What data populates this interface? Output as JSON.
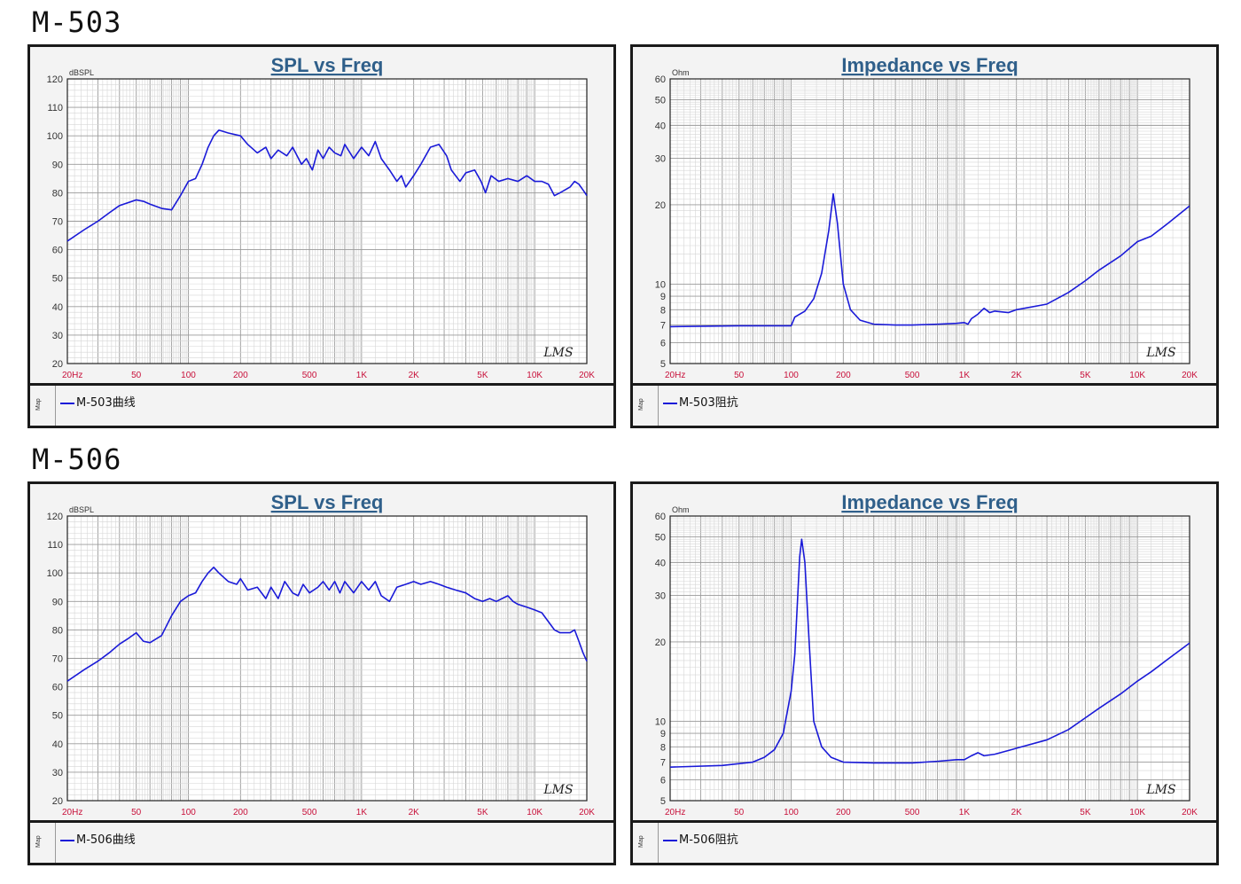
{
  "sections": [
    {
      "model": "M-503"
    },
    {
      "model": "M-506"
    }
  ],
  "x_tick_labels": [
    "20Hz",
    "50",
    "100",
    "200",
    "500",
    "1K",
    "2K",
    "5K",
    "10K",
    "20K"
  ],
  "colors": {
    "curve": "#1a1ad8",
    "tick_x": "#c8103a",
    "title": "#2f5f8a",
    "grid": "#bdbdbd"
  },
  "watermark": "LMS",
  "legend_side_label": "Map",
  "chart_data": [
    {
      "type": "line",
      "title": "SPL vs Freq",
      "ylabel": "dBSPL",
      "xscale": "log",
      "xlim": [
        20,
        20000
      ],
      "ylim": [
        20,
        120
      ],
      "yticks": [
        20,
        30,
        40,
        50,
        60,
        70,
        80,
        90,
        100,
        110,
        120
      ],
      "legend_placement": "bottom",
      "grid": true,
      "series": [
        {
          "name": "M-503曲线",
          "points": [
            [
              20,
              63
            ],
            [
              25,
              67
            ],
            [
              30,
              70
            ],
            [
              35,
              73
            ],
            [
              40,
              75.5
            ],
            [
              50,
              77.5
            ],
            [
              55,
              77
            ],
            [
              60,
              76
            ],
            [
              70,
              74.5
            ],
            [
              80,
              74
            ],
            [
              90,
              79
            ],
            [
              100,
              84
            ],
            [
              110,
              85
            ],
            [
              120,
              90
            ],
            [
              130,
              96
            ],
            [
              140,
              100
            ],
            [
              150,
              102
            ],
            [
              170,
              101
            ],
            [
              200,
              100
            ],
            [
              220,
              97
            ],
            [
              250,
              94
            ],
            [
              280,
              96
            ],
            [
              300,
              92
            ],
            [
              330,
              95
            ],
            [
              370,
              93
            ],
            [
              400,
              96
            ],
            [
              450,
              90
            ],
            [
              480,
              92
            ],
            [
              520,
              88
            ],
            [
              560,
              95
            ],
            [
              600,
              92
            ],
            [
              650,
              96
            ],
            [
              700,
              94
            ],
            [
              760,
              93
            ],
            [
              800,
              97
            ],
            [
              900,
              92
            ],
            [
              1000,
              96
            ],
            [
              1100,
              93
            ],
            [
              1200,
              98
            ],
            [
              1300,
              92
            ],
            [
              1450,
              88
            ],
            [
              1600,
              84
            ],
            [
              1700,
              86
            ],
            [
              1800,
              82
            ],
            [
              2000,
              86
            ],
            [
              2200,
              90
            ],
            [
              2500,
              96
            ],
            [
              2800,
              97
            ],
            [
              3100,
              93
            ],
            [
              3300,
              88
            ],
            [
              3700,
              84
            ],
            [
              4000,
              87
            ],
            [
              4500,
              88
            ],
            [
              4900,
              84
            ],
            [
              5200,
              80
            ],
            [
              5600,
              86
            ],
            [
              6200,
              84
            ],
            [
              7000,
              85
            ],
            [
              8000,
              84
            ],
            [
              9000,
              86
            ],
            [
              10000,
              84
            ],
            [
              11000,
              84
            ],
            [
              12000,
              83
            ],
            [
              13000,
              79
            ],
            [
              14000,
              80
            ],
            [
              16000,
              82
            ],
            [
              17000,
              84
            ],
            [
              18000,
              83
            ],
            [
              19000,
              81
            ],
            [
              20000,
              79
            ]
          ]
        }
      ]
    },
    {
      "type": "line",
      "title": "Impedance vs Freq",
      "ylabel": "Ohm",
      "xscale": "log",
      "yscale": "log",
      "xlim": [
        20,
        20000
      ],
      "ylim": [
        5,
        60
      ],
      "yticks": [
        5,
        6,
        7,
        8,
        9,
        10,
        20,
        30,
        40,
        50,
        60
      ],
      "legend_placement": "bottom",
      "grid": true,
      "series": [
        {
          "name": "M-503阻抗",
          "points": [
            [
              20,
              6.9
            ],
            [
              50,
              6.95
            ],
            [
              80,
              6.95
            ],
            [
              100,
              6.95
            ],
            [
              105,
              7.5
            ],
            [
              120,
              7.9
            ],
            [
              135,
              8.8
            ],
            [
              150,
              11
            ],
            [
              165,
              16
            ],
            [
              175,
              22
            ],
            [
              185,
              17
            ],
            [
              200,
              10
            ],
            [
              220,
              8
            ],
            [
              250,
              7.3
            ],
            [
              300,
              7.05
            ],
            [
              400,
              7.0
            ],
            [
              500,
              7.0
            ],
            [
              700,
              7.05
            ],
            [
              900,
              7.1
            ],
            [
              1000,
              7.15
            ],
            [
              1050,
              7.05
            ],
            [
              1100,
              7.4
            ],
            [
              1200,
              7.7
            ],
            [
              1300,
              8.1
            ],
            [
              1400,
              7.8
            ],
            [
              1500,
              7.9
            ],
            [
              1800,
              7.8
            ],
            [
              2000,
              8.0
            ],
            [
              3000,
              8.4
            ],
            [
              4000,
              9.3
            ],
            [
              5000,
              10.3
            ],
            [
              6000,
              11.3
            ],
            [
              8000,
              12.8
            ],
            [
              10000,
              14.5
            ],
            [
              12000,
              15.2
            ],
            [
              15000,
              17.0
            ],
            [
              20000,
              19.8
            ]
          ]
        }
      ]
    },
    {
      "type": "line",
      "title": "SPL vs Freq",
      "ylabel": "dBSPL",
      "xscale": "log",
      "xlim": [
        20,
        20000
      ],
      "ylim": [
        20,
        120
      ],
      "yticks": [
        20,
        30,
        40,
        50,
        60,
        70,
        80,
        90,
        100,
        110,
        120
      ],
      "legend_placement": "bottom",
      "grid": true,
      "series": [
        {
          "name": "M-506曲线",
          "points": [
            [
              20,
              62
            ],
            [
              25,
              66
            ],
            [
              30,
              69
            ],
            [
              35,
              72
            ],
            [
              40,
              75
            ],
            [
              45,
              77
            ],
            [
              50,
              79
            ],
            [
              55,
              76
            ],
            [
              60,
              75.5
            ],
            [
              70,
              78
            ],
            [
              80,
              85
            ],
            [
              90,
              90
            ],
            [
              100,
              92
            ],
            [
              110,
              93
            ],
            [
              120,
              97
            ],
            [
              130,
              100
            ],
            [
              140,
              102
            ],
            [
              150,
              100
            ],
            [
              170,
              97
            ],
            [
              190,
              96
            ],
            [
              200,
              98
            ],
            [
              220,
              94
            ],
            [
              250,
              95
            ],
            [
              280,
              91
            ],
            [
              300,
              95
            ],
            [
              330,
              91
            ],
            [
              360,
              97
            ],
            [
              400,
              93
            ],
            [
              430,
              92
            ],
            [
              460,
              96
            ],
            [
              500,
              93
            ],
            [
              560,
              95
            ],
            [
              600,
              97
            ],
            [
              650,
              94
            ],
            [
              700,
              97
            ],
            [
              750,
              93
            ],
            [
              800,
              97
            ],
            [
              900,
              93
            ],
            [
              1000,
              97
            ],
            [
              1100,
              94
            ],
            [
              1200,
              97
            ],
            [
              1300,
              92
            ],
            [
              1450,
              90
            ],
            [
              1600,
              95
            ],
            [
              1800,
              96
            ],
            [
              2000,
              97
            ],
            [
              2200,
              96
            ],
            [
              2500,
              97
            ],
            [
              2800,
              96
            ],
            [
              3100,
              95
            ],
            [
              3500,
              94
            ],
            [
              4000,
              93
            ],
            [
              4500,
              91
            ],
            [
              5000,
              90
            ],
            [
              5500,
              91
            ],
            [
              6000,
              90
            ],
            [
              7000,
              92
            ],
            [
              7500,
              90
            ],
            [
              8000,
              89
            ],
            [
              9000,
              88
            ],
            [
              10000,
              87
            ],
            [
              11000,
              86
            ],
            [
              13000,
              80
            ],
            [
              14000,
              79
            ],
            [
              16000,
              79
            ],
            [
              17000,
              80
            ],
            [
              18000,
              76
            ],
            [
              19000,
              72
            ],
            [
              20000,
              69
            ]
          ]
        }
      ]
    },
    {
      "type": "line",
      "title": "Impedance vs Freq",
      "ylabel": "Ohm",
      "xscale": "log",
      "yscale": "log",
      "xlim": [
        20,
        20000
      ],
      "ylim": [
        5,
        60
      ],
      "yticks": [
        5,
        6,
        7,
        8,
        9,
        10,
        20,
        30,
        40,
        50,
        60
      ],
      "legend_placement": "bottom",
      "grid": true,
      "series": [
        {
          "name": "M-506阻抗",
          "points": [
            [
              20,
              6.7
            ],
            [
              40,
              6.8
            ],
            [
              60,
              7.0
            ],
            [
              70,
              7.3
            ],
            [
              80,
              7.8
            ],
            [
              90,
              9
            ],
            [
              100,
              13
            ],
            [
              105,
              18
            ],
            [
              112,
              42
            ],
            [
              115,
              49
            ],
            [
              120,
              40
            ],
            [
              127,
              20
            ],
            [
              135,
              10
            ],
            [
              150,
              8
            ],
            [
              170,
              7.3
            ],
            [
              200,
              7.0
            ],
            [
              300,
              6.95
            ],
            [
              500,
              6.95
            ],
            [
              700,
              7.05
            ],
            [
              900,
              7.15
            ],
            [
              1000,
              7.15
            ],
            [
              1100,
              7.4
            ],
            [
              1200,
              7.6
            ],
            [
              1300,
              7.4
            ],
            [
              1500,
              7.5
            ],
            [
              2000,
              7.9
            ],
            [
              3000,
              8.5
            ],
            [
              4000,
              9.3
            ],
            [
              5000,
              10.3
            ],
            [
              6000,
              11.2
            ],
            [
              8000,
              12.7
            ],
            [
              10000,
              14.2
            ],
            [
              12000,
              15.4
            ],
            [
              15000,
              17.2
            ],
            [
              20000,
              19.8
            ]
          ]
        }
      ]
    }
  ]
}
